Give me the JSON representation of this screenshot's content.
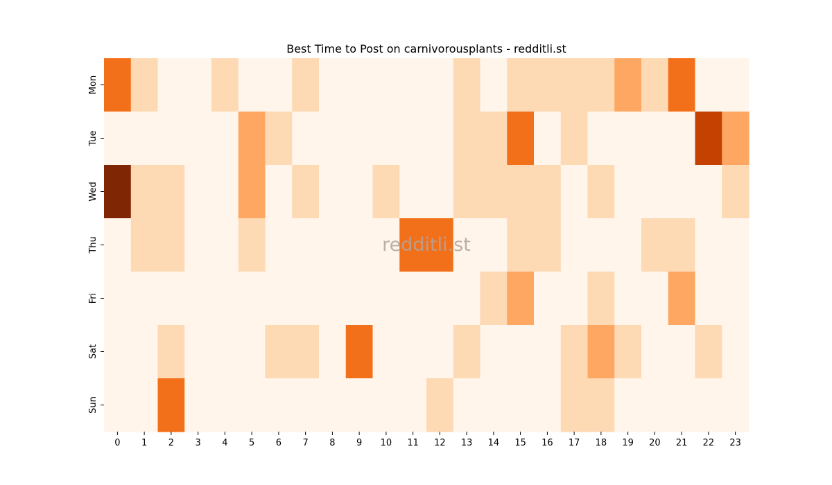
{
  "chart_data": {
    "type": "heatmap",
    "title": "Best Time to Post on carnivorousplants - redditli.st",
    "watermark": "redditli.st",
    "x_categories": [
      "0",
      "1",
      "2",
      "3",
      "4",
      "5",
      "6",
      "7",
      "8",
      "9",
      "10",
      "11",
      "12",
      "13",
      "14",
      "15",
      "16",
      "17",
      "18",
      "19",
      "20",
      "21",
      "22",
      "23"
    ],
    "y_categories": [
      "Mon",
      "Tue",
      "Wed",
      "Thu",
      "Fri",
      "Sat",
      "Sun"
    ],
    "values": [
      [
        3,
        1,
        0,
        0,
        1,
        0,
        0,
        1,
        0,
        0,
        0,
        0,
        0,
        1,
        0,
        1,
        1,
        1,
        1,
        2,
        1,
        3,
        0,
        0
      ],
      [
        0,
        0,
        0,
        0,
        0,
        2,
        1,
        0,
        0,
        0,
        0,
        0,
        0,
        1,
        1,
        3,
        0,
        1,
        0,
        0,
        0,
        0,
        4,
        2
      ],
      [
        5,
        1,
        1,
        0,
        0,
        2,
        0,
        1,
        0,
        0,
        1,
        0,
        0,
        1,
        1,
        1,
        1,
        0,
        1,
        0,
        0,
        0,
        0,
        1
      ],
      [
        0,
        1,
        1,
        0,
        0,
        1,
        0,
        0,
        0,
        0,
        0,
        3,
        3,
        0,
        0,
        1,
        1,
        0,
        0,
        0,
        1,
        1,
        0,
        0
      ],
      [
        0,
        0,
        0,
        0,
        0,
        0,
        0,
        0,
        0,
        0,
        0,
        0,
        0,
        0,
        1,
        2,
        0,
        0,
        1,
        0,
        0,
        2,
        0,
        0
      ],
      [
        0,
        0,
        1,
        0,
        0,
        0,
        1,
        1,
        0,
        3,
        0,
        0,
        0,
        1,
        0,
        0,
        0,
        1,
        2,
        1,
        0,
        0,
        1,
        0
      ],
      [
        0,
        0,
        3,
        0,
        0,
        0,
        0,
        0,
        0,
        0,
        0,
        0,
        1,
        0,
        0,
        0,
        0,
        1,
        1,
        0,
        0,
        0,
        0,
        0
      ]
    ],
    "colormap": [
      "#fff5eb",
      "#fdd9b4",
      "#fda762",
      "#f3701b",
      "#c54102",
      "#7f2704"
    ],
    "colorbar": false
  }
}
